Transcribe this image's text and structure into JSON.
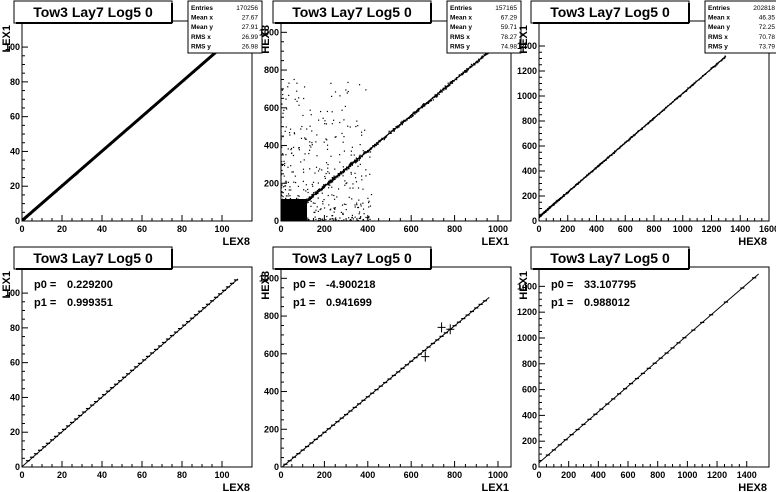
{
  "chart_data": [
    {
      "type": "scatter",
      "title": "Tow3 Lay7 Log5 0",
      "xlabel": "LEX8",
      "ylabel": "LEX1",
      "xlim": [
        0,
        115
      ],
      "ylim": [
        0,
        115
      ],
      "xticks": [
        0,
        20,
        40,
        60,
        80,
        100
      ],
      "yticks": [
        0,
        20,
        40,
        60,
        80,
        100
      ],
      "stats": [
        {
          "label": "Entries",
          "value": "170256"
        },
        {
          "label": "Mean x",
          "value": "27.67"
        },
        {
          "label": "Mean y",
          "value": "27.91"
        },
        {
          "label": "RMS x",
          "value": "26.99"
        },
        {
          "label": "RMS y",
          "value": "26.98"
        }
      ],
      "trend": {
        "slope": 0.999,
        "intercept": 0.2,
        "x_range": [
          0,
          108
        ],
        "spread": 0.8,
        "count": 700
      }
    },
    {
      "type": "scatter",
      "title": "Tow3 Lay7 Log5 0",
      "xlabel": "LEX1",
      "ylabel": "HEX8",
      "xlim": [
        0,
        1060
      ],
      "ylim": [
        0,
        1060
      ],
      "xticks": [
        0,
        200,
        400,
        600,
        800,
        1000
      ],
      "yticks": [
        0,
        200,
        400,
        600,
        800,
        1000
      ],
      "stats": [
        {
          "label": "Entries",
          "value": "157165"
        },
        {
          "label": "Mean x",
          "value": "67.29"
        },
        {
          "label": "Mean y",
          "value": "59.71"
        },
        {
          "label": "RMS x",
          "value": "78.27"
        },
        {
          "label": "RMS y",
          "value": "74.98"
        }
      ],
      "trend": {
        "slope": 0.94,
        "intercept": -5,
        "x_range": [
          0,
          1000
        ],
        "spread": 15,
        "count": 900
      },
      "noise": {
        "x_range": [
          0,
          420
        ],
        "y_range": [
          0,
          750
        ],
        "count": 500
      }
    },
    {
      "type": "scatter",
      "title": "Tow3 Lay7 Log5 0",
      "xlabel": "HEX8",
      "ylabel": "HEX1",
      "xlim": [
        0,
        1600
      ],
      "ylim": [
        0,
        1600
      ],
      "xticks": [
        0,
        200,
        400,
        600,
        800,
        1000,
        1200,
        1400,
        1600
      ],
      "yticks": [
        0,
        200,
        400,
        600,
        800,
        1000,
        1200,
        1400
      ],
      "stats": [
        {
          "label": "Entries",
          "value": "202818"
        },
        {
          "label": "Mean x",
          "value": "46.35"
        },
        {
          "label": "Mean y",
          "value": "72.25"
        },
        {
          "label": "RMS x",
          "value": "70.78"
        },
        {
          "label": "RMS y",
          "value": "73.79"
        }
      ],
      "trend": {
        "slope": 0.988,
        "intercept": 33,
        "x_range": [
          0,
          1300
        ],
        "spread": 10,
        "count": 500
      }
    },
    {
      "type": "line",
      "title": "Tow3 Lay7 Log5 0",
      "xlabel": "LEX8",
      "ylabel": "LEX1",
      "xlim": [
        0,
        115
      ],
      "ylim": [
        0,
        115
      ],
      "xticks": [
        0,
        20,
        40,
        60,
        80,
        100
      ],
      "yticks": [
        0,
        20,
        40,
        60,
        80,
        100
      ],
      "fit": [
        {
          "label": "p0 =",
          "value": "0.229200"
        },
        {
          "label": "p1 =",
          "value": "0.999351"
        }
      ],
      "p0": 0.2292,
      "p1": 0.999351,
      "fit_range": [
        0,
        108
      ],
      "points_x": [
        3,
        5,
        7,
        9,
        11,
        13,
        15,
        17,
        19,
        21,
        23,
        25,
        27,
        29,
        31,
        33,
        35,
        37,
        39,
        41,
        43,
        45,
        47,
        49,
        51,
        53,
        55,
        57,
        59,
        61,
        63,
        65,
        67,
        69,
        71,
        73,
        75,
        77,
        79,
        81,
        83,
        85,
        87,
        89,
        91,
        93,
        95,
        97,
        99,
        101,
        103,
        105,
        107
      ],
      "outliers": []
    },
    {
      "type": "line",
      "title": "Tow3 Lay7 Log5 0",
      "xlabel": "LEX1",
      "ylabel": "HEX8",
      "xlim": [
        0,
        1060
      ],
      "ylim": [
        0,
        1060
      ],
      "xticks": [
        0,
        200,
        400,
        600,
        800,
        1000
      ],
      "yticks": [
        0,
        200,
        400,
        600,
        800,
        1000
      ],
      "fit": [
        {
          "label": "p0 =",
          "value": "-4.900218"
        },
        {
          "label": "p1 =",
          "value": "0.941699"
        }
      ],
      "p0": -4.900218,
      "p1": 0.941699,
      "fit_range": [
        0,
        960
      ],
      "points_x": [
        20,
        40,
        60,
        80,
        100,
        120,
        140,
        160,
        180,
        200,
        220,
        240,
        260,
        280,
        300,
        320,
        340,
        360,
        380,
        400,
        420,
        440,
        460,
        480,
        500,
        520,
        540,
        560,
        580,
        600,
        620,
        640,
        660,
        680,
        700,
        720,
        740,
        760,
        780,
        800,
        820,
        840,
        860,
        880,
        900,
        920,
        940
      ],
      "outliers": [
        {
          "x": 665,
          "y": 585
        },
        {
          "x": 740,
          "y": 740
        },
        {
          "x": 780,
          "y": 730
        }
      ]
    },
    {
      "type": "line",
      "title": "Tow3 Lay7 Log5 0",
      "xlabel": "HEX8",
      "ylabel": "HEX1",
      "xlim": [
        0,
        1550
      ],
      "ylim": [
        0,
        1550
      ],
      "xticks": [
        0,
        200,
        400,
        600,
        800,
        1000,
        1200,
        1400
      ],
      "yticks": [
        0,
        200,
        400,
        600,
        800,
        1000,
        1200,
        1400
      ],
      "fit": [
        {
          "label": "p0 =",
          "value": "33.107795"
        },
        {
          "label": "p1 =",
          "value": "0.988012"
        }
      ],
      "p0": 33.107795,
      "p1": 0.988012,
      "fit_range": [
        0,
        1480
      ],
      "points_x": [
        60,
        100,
        140,
        180,
        220,
        260,
        300,
        340,
        380,
        420,
        460,
        500,
        540,
        580,
        620,
        660,
        700,
        740,
        780,
        820,
        860,
        900,
        940,
        980,
        1040,
        1100,
        1160,
        1260,
        1370,
        1450
      ],
      "outliers": []
    }
  ]
}
